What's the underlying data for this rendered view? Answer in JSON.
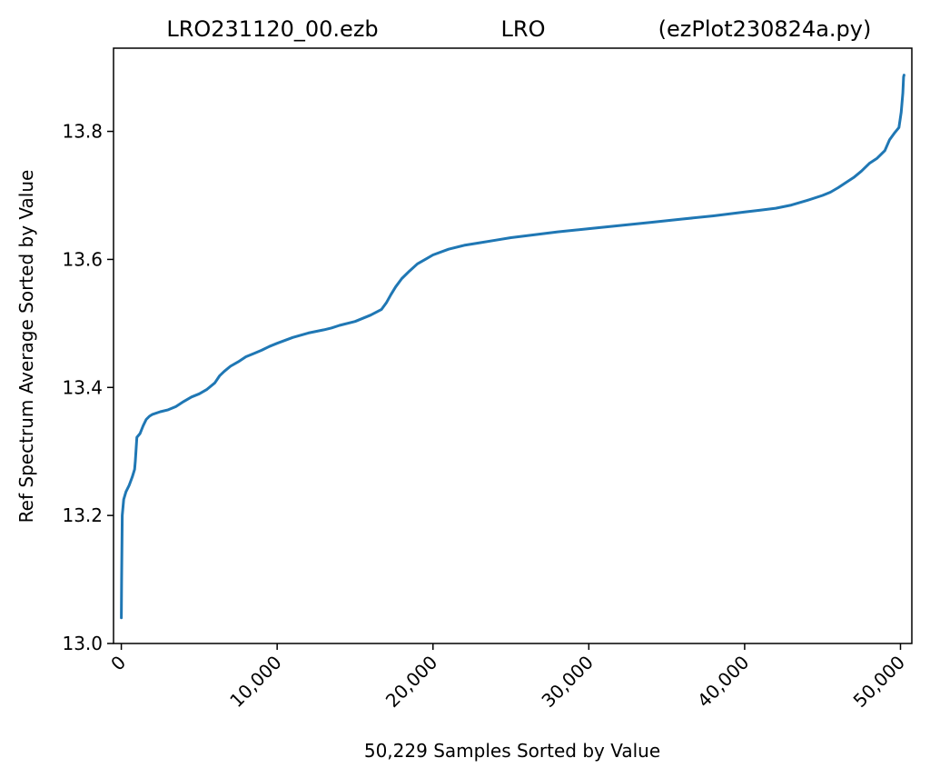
{
  "title_parts": [
    "LRO231120_00.ezb",
    "LRO",
    "(ezPlot230824a.py)"
  ],
  "colors": {
    "series": "#1f77b4",
    "axes": "#000000",
    "background": "#ffffff"
  },
  "chart_data": {
    "type": "line",
    "xlabel": "50,229 Samples Sorted by Value",
    "ylabel": "Ref Spectrum Average Sorted by Value",
    "xlim": [
      -500,
      50729
    ],
    "ylim": [
      13.0,
      13.93
    ],
    "x_ticks": [
      0,
      10000,
      20000,
      30000,
      40000,
      50000
    ],
    "x_tick_labels": [
      "0",
      "10,000",
      "20,000",
      "30,000",
      "40,000",
      "50,000"
    ],
    "y_ticks": [
      13.0,
      13.2,
      13.4,
      13.6,
      13.8
    ],
    "y_tick_labels": [
      "13.0",
      "13.2",
      "13.4",
      "13.6",
      "13.8"
    ],
    "grid": false,
    "series": [
      {
        "x": [
          0,
          20,
          60,
          150,
          300,
          500,
          700,
          850,
          900,
          1000,
          1200,
          1400,
          1600,
          1800,
          2000,
          2500,
          3000,
          3500,
          4000,
          4500,
          5000,
          5500,
          6000,
          6300,
          6600,
          7000,
          7500,
          8000,
          8500,
          9000,
          9500,
          10000,
          11000,
          12000,
          13000,
          13500,
          14000,
          15000,
          16000,
          16700,
          17000,
          17300,
          17600,
          18000,
          18500,
          19000,
          19500,
          20000,
          21000,
          22000,
          23000,
          24000,
          25000,
          26000,
          28000,
          30000,
          32000,
          34000,
          36000,
          38000,
          40000,
          41000,
          42000,
          43000,
          44000,
          45000,
          45500,
          46000,
          46500,
          47000,
          47500,
          48000,
          48500,
          49000,
          49300,
          49600,
          49900,
          50050,
          50150,
          50200,
          50229
        ],
        "y": [
          13.04,
          13.1,
          13.2,
          13.225,
          13.237,
          13.247,
          13.26,
          13.272,
          13.285,
          13.322,
          13.328,
          13.34,
          13.35,
          13.355,
          13.358,
          13.362,
          13.365,
          13.37,
          13.378,
          13.385,
          13.39,
          13.397,
          13.407,
          13.418,
          13.425,
          13.433,
          13.44,
          13.448,
          13.453,
          13.458,
          13.464,
          13.469,
          13.478,
          13.485,
          13.49,
          13.493,
          13.497,
          13.503,
          13.513,
          13.522,
          13.532,
          13.545,
          13.557,
          13.57,
          13.582,
          13.593,
          13.6,
          13.607,
          13.616,
          13.622,
          13.626,
          13.63,
          13.634,
          13.637,
          13.643,
          13.648,
          13.653,
          13.658,
          13.663,
          13.668,
          13.674,
          13.677,
          13.68,
          13.685,
          13.692,
          13.7,
          13.705,
          13.712,
          13.72,
          13.728,
          13.738,
          13.75,
          13.758,
          13.77,
          13.787,
          13.797,
          13.806,
          13.83,
          13.86,
          13.885,
          13.888
        ]
      }
    ]
  }
}
